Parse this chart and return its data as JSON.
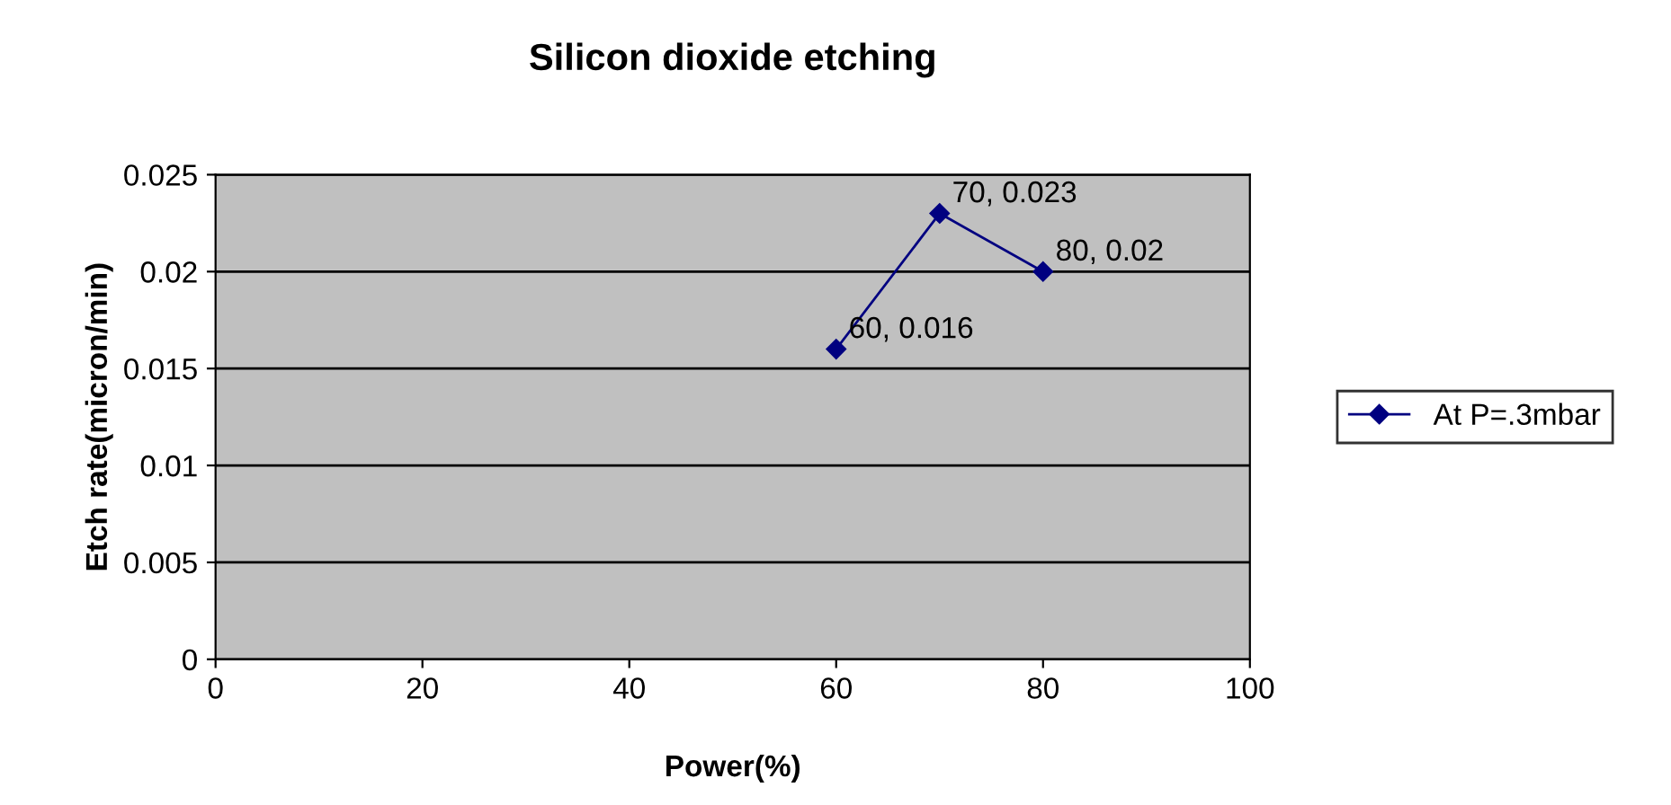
{
  "chart_data": {
    "type": "line",
    "title": "Silicon dioxide etching",
    "xlabel": "Power(%)",
    "ylabel": "Etch rate(micron/min)",
    "x": [
      60,
      70,
      80
    ],
    "series": [
      {
        "name": "At P=.3mbar",
        "color": "#000080",
        "values": [
          0.016,
          0.023,
          0.02
        ],
        "value_labels": [
          "60, 0.016",
          "70, 0.023",
          "80, 0.02"
        ]
      }
    ],
    "xlim": [
      0,
      100
    ],
    "xticks": [
      0,
      20,
      40,
      60,
      80,
      100
    ],
    "ylim": [
      0,
      0.025
    ],
    "yticks": [
      0,
      0.005,
      0.01,
      0.015,
      0.02,
      0.025
    ],
    "grid": "y",
    "legend": "right",
    "marker": "diamond",
    "line_style": "solid"
  }
}
